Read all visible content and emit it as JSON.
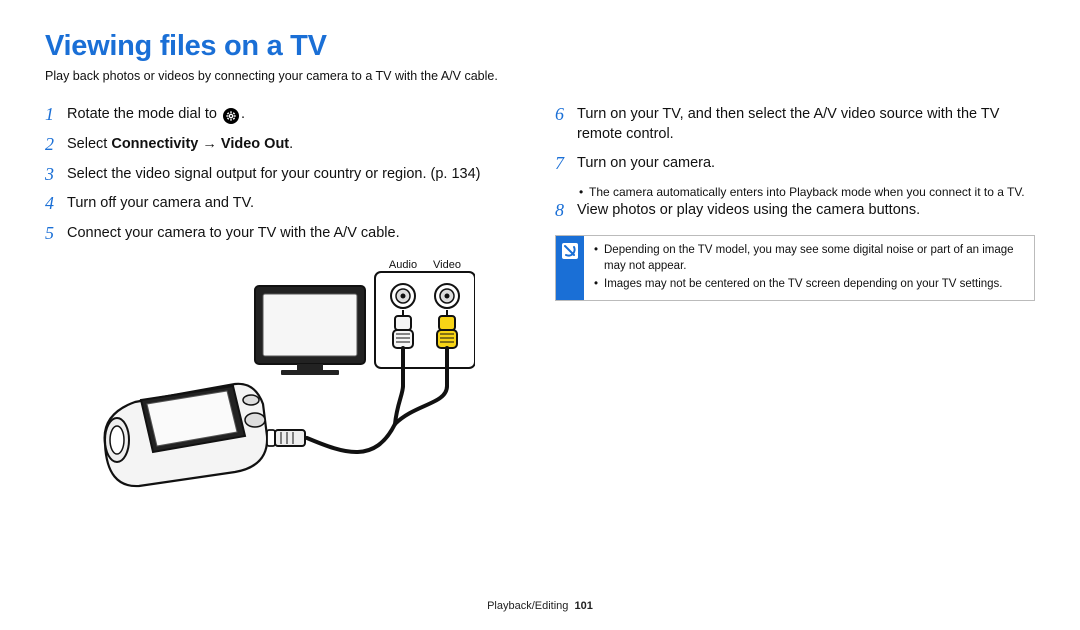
{
  "title": "Viewing files on a TV",
  "subtitle": "Play back photos or videos by connecting your camera to a TV with the A/V cable.",
  "left_steps": [
    {
      "num": "1",
      "html": "Rotate the mode dial to {gear}."
    },
    {
      "num": "2",
      "html": "Select <b>Connectivity</b> → <b>Video Out</b>."
    },
    {
      "num": "3",
      "html": "Select the video signal output for your country or region. (p. 134)"
    },
    {
      "num": "4",
      "html": "Turn off your camera and TV."
    },
    {
      "num": "5",
      "html": "Connect your camera to your TV with the A/V cable."
    }
  ],
  "right_steps": [
    {
      "num": "6",
      "html": "Turn on your TV, and then select the A/V video source with the TV remote control."
    },
    {
      "num": "7",
      "html": "Turn on your camera.",
      "bullets": [
        "The camera automatically enters into Playback mode when you connect it to a TV."
      ]
    },
    {
      "num": "8",
      "html": "View photos or play videos using the camera buttons."
    }
  ],
  "note_bullets": [
    "Depending on the TV model, you may see some digital noise or part of an image may not appear.",
    "Images may not be centered on the TV screen depending on your TV settings."
  ],
  "diagram": {
    "audio_label": "Audio",
    "video_label": "Video",
    "audio_plug_color": "#f5f5f5",
    "audio_plug_stroke": "#111",
    "video_plug_color": "#f7d416",
    "video_plug_stroke": "#111",
    "panel_stroke": "#111",
    "panel_fill": "#ffffff",
    "tv_fill": "#333333",
    "tv_screen_fill": "#f6f6f6",
    "camera_stroke": "#111",
    "camera_fill": "#f4f4f4",
    "cable_color": "#111"
  },
  "footer": {
    "section": "Playback/Editing",
    "page": "101"
  },
  "colors": {
    "heading_blue": "#1a6fd6",
    "text": "#111111",
    "border_gray": "#bbbbbb",
    "background": "#ffffff"
  }
}
